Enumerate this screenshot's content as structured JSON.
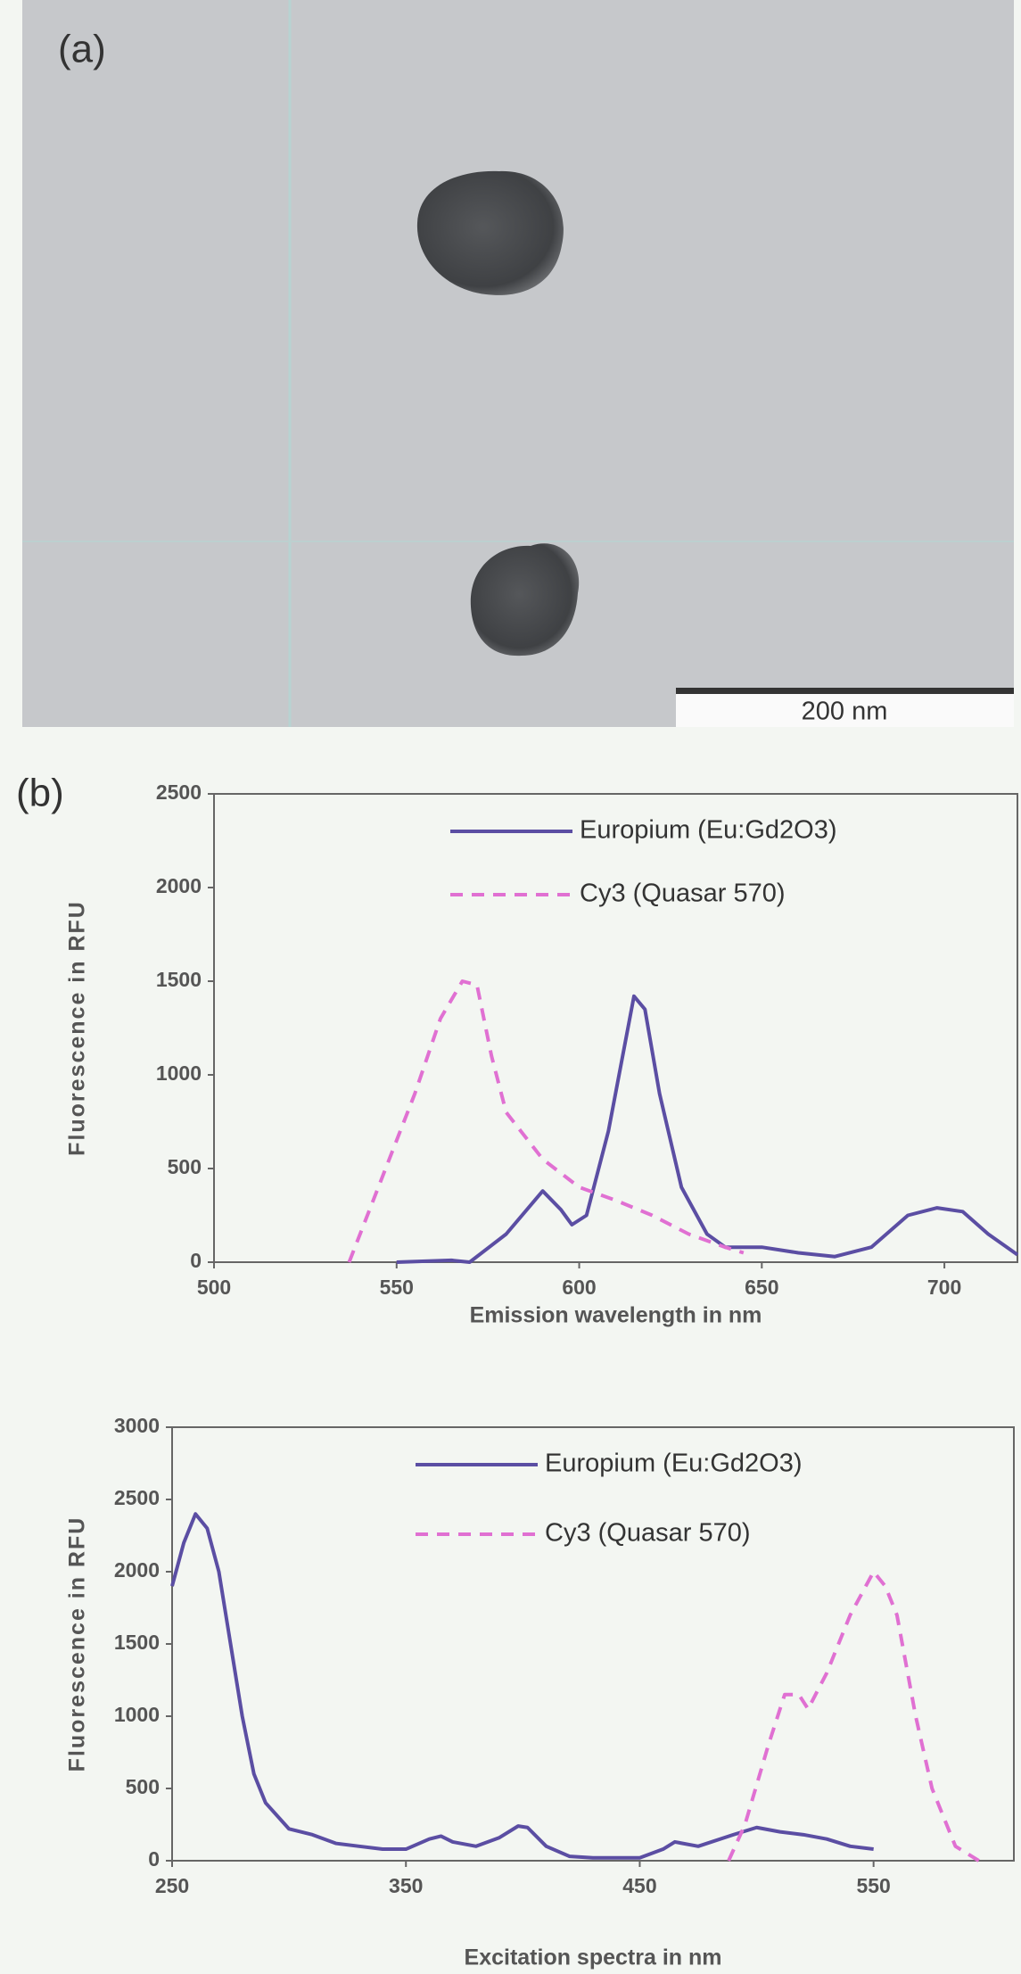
{
  "panel_a": {
    "label": "(a)",
    "scale_bar": "200 nm"
  },
  "panel_b": {
    "label": "(b)"
  },
  "chart_data": [
    {
      "type": "line",
      "x_label": "Emission wavelength in nm",
      "y_label": "Fluorescence in RFU",
      "xlim": [
        500,
        720
      ],
      "xticks": [
        500,
        550,
        600,
        650,
        700
      ],
      "ylim": [
        0,
        2500
      ],
      "yticks": [
        0,
        500,
        1000,
        1500,
        2000,
        2500
      ],
      "legend": "upper right",
      "series": [
        {
          "name": "Europium (Eu:Gd2O3)",
          "color": "#5b4ea3",
          "dash": false,
          "x": [
            550,
            565,
            570,
            580,
            590,
            595,
            598,
            602,
            608,
            615,
            618,
            622,
            628,
            635,
            640,
            650,
            660,
            670,
            680,
            690,
            698,
            705,
            712,
            720
          ],
          "values": [
            0,
            10,
            0,
            150,
            380,
            280,
            200,
            250,
            700,
            1420,
            1350,
            900,
            400,
            150,
            80,
            80,
            50,
            30,
            80,
            250,
            290,
            270,
            150,
            40
          ]
        },
        {
          "name": "Cy3 (Quasar 570)",
          "color": "#e070d2",
          "dash": true,
          "x": [
            537,
            545,
            555,
            562,
            568,
            572,
            576,
            580,
            590,
            600,
            610,
            620,
            630,
            640,
            645
          ],
          "values": [
            0,
            400,
            900,
            1300,
            1500,
            1480,
            1100,
            800,
            550,
            400,
            330,
            250,
            150,
            80,
            50
          ]
        }
      ]
    },
    {
      "type": "line",
      "x_label": "Excitation spectra in nm",
      "y_label": "Fluorescence in RFU",
      "xlim": [
        250,
        610
      ],
      "xticks": [
        250,
        350,
        450,
        550
      ],
      "ylim": [
        0,
        3000
      ],
      "yticks": [
        0,
        500,
        1000,
        1500,
        2000,
        2500,
        3000
      ],
      "legend": "upper right",
      "series": [
        {
          "name": "Europium (Eu:Gd2O3)",
          "color": "#5b4ea3",
          "dash": false,
          "x": [
            250,
            255,
            260,
            265,
            270,
            275,
            280,
            285,
            290,
            300,
            310,
            320,
            330,
            340,
            350,
            360,
            365,
            370,
            380,
            390,
            398,
            402,
            410,
            420,
            430,
            440,
            450,
            460,
            465,
            475,
            490,
            500,
            510,
            520,
            530,
            540,
            550
          ],
          "values": [
            1900,
            2200,
            2400,
            2300,
            2000,
            1500,
            1000,
            600,
            400,
            220,
            180,
            120,
            100,
            80,
            80,
            150,
            170,
            130,
            100,
            160,
            240,
            230,
            100,
            30,
            20,
            20,
            20,
            80,
            130,
            100,
            180,
            230,
            200,
            180,
            150,
            100,
            80
          ]
        },
        {
          "name": "Cy3 (Quasar 570)",
          "color": "#e070d2",
          "dash": true,
          "x": [
            488,
            495,
            505,
            512,
            518,
            522,
            530,
            540,
            550,
            555,
            560,
            568,
            575,
            585,
            595
          ],
          "values": [
            0,
            250,
            800,
            1150,
            1150,
            1050,
            1300,
            1700,
            2000,
            1900,
            1700,
            1000,
            500,
            100,
            0
          ]
        }
      ]
    }
  ]
}
